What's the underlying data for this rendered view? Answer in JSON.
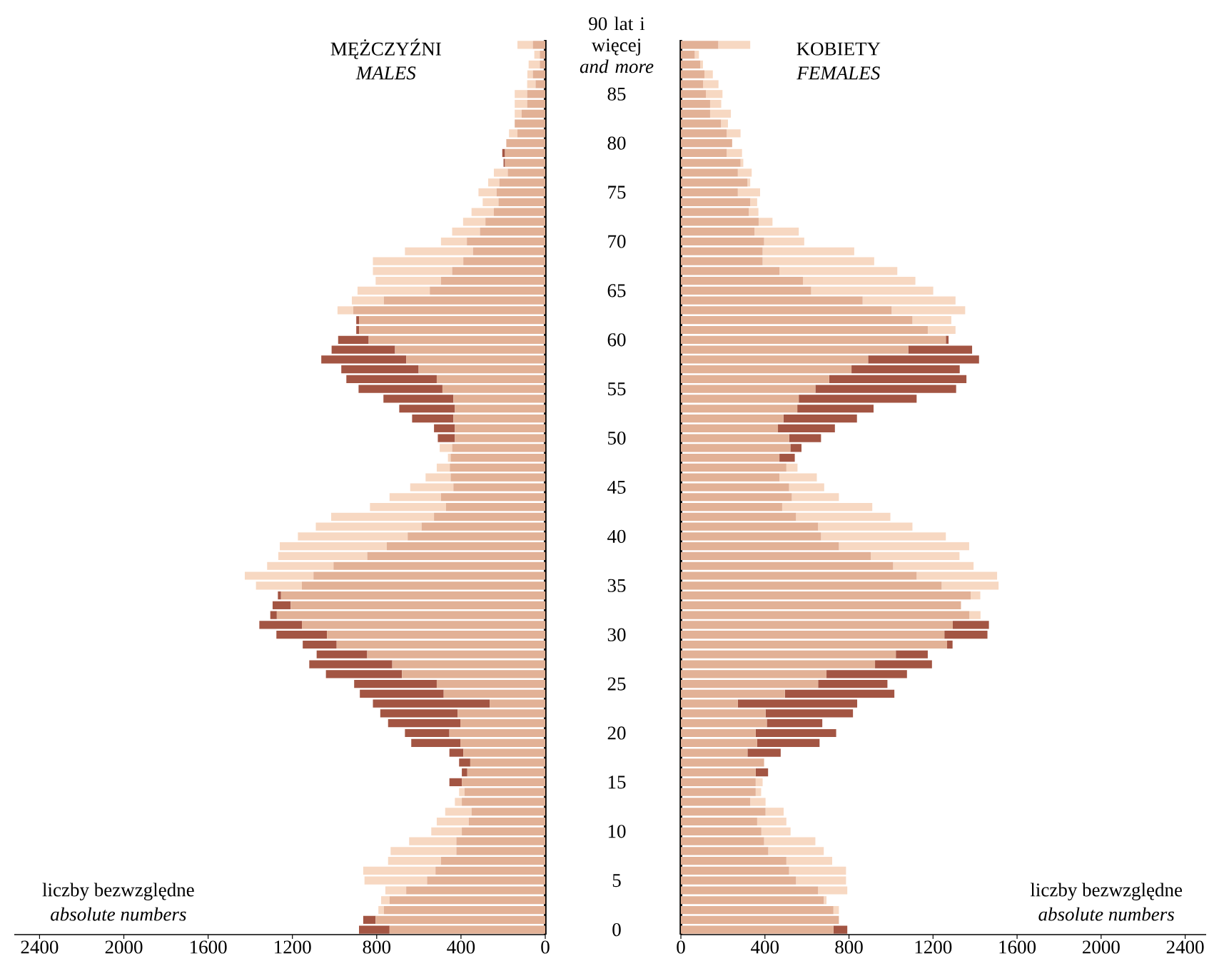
{
  "chart_data": [
    {
      "type": "bar",
      "orientation": "horizontal",
      "stacked": true,
      "title": "MĘŻCZYŹNI",
      "subtitle": "MALES",
      "annotations": [
        "liczby bezwzględne",
        "absolute numbers"
      ],
      "categories": [
        "90 lat i więcej *and more*",
        null,
        null,
        null,
        null,
        "85",
        null,
        null,
        null,
        null,
        "80",
        null,
        null,
        null,
        null,
        "75",
        null,
        null,
        null,
        null,
        "70",
        null,
        null,
        null,
        null,
        "65",
        null,
        null,
        null,
        null,
        "60",
        null,
        null,
        null,
        null,
        "55",
        null,
        null,
        null,
        null,
        "50",
        null,
        null,
        null,
        null,
        "45",
        null,
        null,
        null,
        null,
        "40",
        null,
        null,
        null,
        null,
        "35",
        null,
        null,
        null,
        null,
        "30",
        null,
        null,
        null,
        null,
        "25",
        null,
        null,
        null,
        null,
        "20",
        null,
        null,
        null,
        null,
        "15",
        null,
        null,
        null,
        null,
        "10",
        null,
        null,
        null,
        null,
        "5",
        null,
        null,
        null,
        null,
        "0"
      ],
      "xlim": [
        2520,
        0
      ],
      "xticks": [
        2400,
        2000,
        1600,
        1200,
        800,
        400,
        0
      ],
      "series": [
        {
          "color": "#e2b196",
          "values": [
            59,
            26,
            26,
            59,
            46,
            86,
            86,
            112,
            145,
            132,
            185,
            191,
            191,
            178,
            218,
            231,
            222,
            244,
            284,
            310,
            372,
            343,
            389,
            442,
            495,
            548,
            766,
            911,
            884,
            884,
            838,
            713,
            660,
            601,
            515,
            488,
            436,
            429,
            436,
            429,
            429,
            442,
            449,
            453,
            449,
            436,
            495,
            471,
            528,
            587,
            653,
            752,
            845,
            1005,
            1100,
            1155,
            1254,
            1208,
            1274,
            1155,
            1036,
            990,
            845,
            726,
            680,
            515,
            482,
            264,
            416,
            403,
            455,
            403,
            389,
            356,
            370,
            396,
            383,
            396,
            350,
            363,
            396,
            422,
            422,
            495,
            521,
            561,
            660,
            739,
            766,
            805,
            739
          ]
        },
        {
          "color": "#f7d8c2",
          "values": [
            73,
            26,
            53,
            26,
            40,
            59,
            59,
            33,
            null,
            40,
            null,
            null,
            null,
            66,
            53,
            86,
            75,
            106,
            106,
            132,
            123,
            323,
            429,
            376,
            310,
            343,
            152,
            75,
            null,
            null,
            null,
            null,
            null,
            null,
            null,
            null,
            null,
            null,
            null,
            null,
            null,
            59,
            13,
            62,
            119,
            205,
            244,
            361,
            488,
            502,
            521,
            508,
            422,
            315,
            326,
            218,
            null,
            null,
            null,
            null,
            null,
            null,
            null,
            null,
            null,
            null,
            null,
            null,
            null,
            null,
            null,
            null,
            null,
            null,
            null,
            null,
            26,
            33,
            125,
            152,
            145,
            224,
            312,
            251,
            343,
            297,
            99,
            40,
            26,
            null,
            null
          ]
        },
        {
          "color": "#a35543",
          "values": [
            null,
            null,
            null,
            null,
            null,
            null,
            null,
            null,
            null,
            null,
            null,
            13,
            7,
            null,
            null,
            null,
            null,
            null,
            null,
            null,
            null,
            null,
            null,
            null,
            null,
            null,
            null,
            null,
            13,
            13,
            145,
            301,
            403,
            367,
            429,
            398,
            332,
            264,
            196,
            99,
            81,
            null,
            null,
            null,
            null,
            null,
            null,
            null,
            null,
            null,
            null,
            null,
            null,
            null,
            null,
            null,
            15,
            86,
            31,
            202,
            240,
            161,
            240,
            394,
            361,
            392,
            398,
            554,
            367,
            343,
            211,
            233,
            66,
            53,
            26,
            59,
            null,
            null,
            null,
            null,
            null,
            null,
            null,
            null,
            null,
            null,
            null,
            null,
            null,
            59,
            145
          ]
        }
      ]
    },
    {
      "type": "bar",
      "orientation": "horizontal",
      "stacked": true,
      "title": "KOBIETY",
      "subtitle": "FEMALES",
      "annotations": [
        "liczby bezwzględne",
        "absolute numbers"
      ],
      "tick_labels": "x",
      "categories": [
        null,
        null,
        null,
        null,
        null,
        null,
        null,
        null,
        null,
        null,
        null,
        null,
        null,
        null,
        null,
        null,
        null,
        null,
        null,
        null,
        null,
        null,
        null,
        null,
        null,
        null,
        null,
        null,
        null,
        null,
        null,
        null,
        null,
        null,
        null,
        null,
        null,
        null,
        null,
        null,
        null,
        null,
        null,
        null,
        null,
        null,
        null,
        null,
        null,
        null,
        null,
        null,
        null,
        null,
        null,
        null,
        null,
        null,
        null,
        null,
        null,
        null,
        null,
        null,
        null,
        null,
        null,
        null,
        null,
        null,
        null,
        null,
        null,
        null,
        null,
        null,
        null,
        null,
        null,
        null,
        null,
        null,
        null,
        null,
        null,
        null,
        null,
        null,
        null,
        null,
        null
      ],
      "xlim": [
        0,
        2500
      ],
      "xticks": [
        0,
        400,
        800,
        1200,
        1600,
        2000,
        2400
      ],
      "series": [
        {
          "color": "#e2b196",
          "values": [
            178,
            66,
            92,
            112,
            106,
            119,
            139,
            139,
            191,
            218,
            244,
            218,
            284,
            271,
            317,
            271,
            330,
            323,
            370,
            350,
            396,
            389,
            389,
            469,
            581,
            620,
            865,
            1003,
            1102,
            1175,
            1261,
            1082,
            891,
            812,
            706,
            640,
            561,
            554,
            488,
            462,
            515,
            521,
            469,
            502,
            469,
            515,
            528,
            482,
            548,
            653,
            667,
            752,
            904,
            1010,
            1122,
            1241,
            1379,
            1333,
            1373,
            1294,
            1254,
            1267,
            1023,
            924,
            693,
            653,
            495,
            271,
            403,
            409,
            356,
            363,
            317,
            396,
            356,
            356,
            356,
            330,
            403,
            363,
            383,
            396,
            416,
            502,
            515,
            548,
            653,
            680,
            726,
            752,
            726
          ]
        },
        {
          "color": "#f7d8c2",
          "values": [
            152,
            20,
            13,
            40,
            73,
            79,
            53,
            99,
            33,
            66,
            null,
            73,
            13,
            66,
            13,
            106,
            33,
            46,
            66,
            211,
            191,
            436,
            531,
            561,
            535,
            581,
            442,
            350,
            185,
            132,
            null,
            null,
            null,
            null,
            null,
            null,
            null,
            null,
            null,
            null,
            null,
            null,
            null,
            53,
            178,
            167,
            224,
            429,
            449,
            449,
            594,
            620,
            422,
            383,
            383,
            271,
            46,
            null,
            53,
            null,
            null,
            null,
            null,
            null,
            null,
            null,
            null,
            null,
            null,
            null,
            null,
            null,
            null,
            null,
            null,
            33,
            26,
            73,
            86,
            139,
            139,
            244,
            264,
            218,
            271,
            238,
            139,
            13,
            26,
            null,
            null
          ]
        },
        {
          "color": "#a35543",
          "values": [
            null,
            null,
            null,
            null,
            null,
            null,
            null,
            null,
            null,
            null,
            null,
            null,
            null,
            null,
            null,
            null,
            null,
            null,
            null,
            null,
            null,
            null,
            null,
            null,
            null,
            null,
            null,
            null,
            null,
            null,
            13,
            304,
            528,
            515,
            653,
            670,
            561,
            363,
            350,
            271,
            152,
            53,
            73,
            null,
            null,
            null,
            null,
            null,
            null,
            null,
            null,
            null,
            null,
            null,
            null,
            null,
            null,
            null,
            null,
            172,
            205,
            26,
            152,
            271,
            383,
            330,
            521,
            568,
            416,
            264,
            383,
            297,
            158,
            null,
            59,
            null,
            null,
            null,
            null,
            null,
            null,
            null,
            null,
            null,
            null,
            null,
            null,
            null,
            null,
            null,
            66
          ]
        }
      ]
    }
  ]
}
